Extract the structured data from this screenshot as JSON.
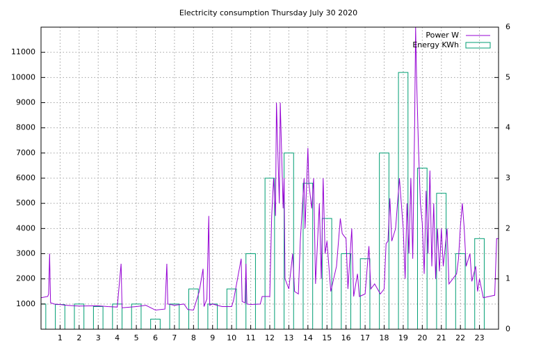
{
  "chart_data": {
    "type": "line",
    "title": "Electricity consumption Thursday July 30 2020",
    "xlim": [
      0,
      24
    ],
    "xticks": [
      1,
      2,
      3,
      4,
      5,
      6,
      7,
      8,
      9,
      10,
      11,
      12,
      13,
      14,
      15,
      16,
      17,
      18,
      19,
      20,
      21,
      22,
      23
    ],
    "ylim": [
      0,
      12000
    ],
    "yticks": [
      1000,
      2000,
      3000,
      4000,
      5000,
      6000,
      7000,
      8000,
      9000,
      10000,
      11000
    ],
    "y2lim": [
      0,
      6
    ],
    "y2ticks": [
      0,
      1,
      2,
      3,
      4,
      5,
      6
    ],
    "grid": true,
    "legend": "top right",
    "series": [
      {
        "name": "Power W",
        "color": "#9400d3",
        "type": "line",
        "x": [
          0,
          0.35,
          0.4,
          0.45,
          0.5,
          0.7,
          1.0,
          1.3,
          2,
          3,
          3.5,
          4.0,
          4.2,
          4.25,
          5,
          5.5,
          6,
          6.5,
          6.6,
          6.65,
          7,
          7.5,
          7.7,
          8,
          8.3,
          8.5,
          8.55,
          8.7,
          8.8,
          8.85,
          9,
          9.5,
          10,
          10.1,
          10.5,
          10.55,
          10.7,
          10.75,
          10.8,
          11,
          11.5,
          11.6,
          12,
          12.1,
          12.2,
          12.3,
          12.35,
          12.5,
          12.55,
          12.7,
          12.75,
          12.8,
          13,
          13.2,
          13.3,
          13.5,
          13.6,
          13.8,
          13.85,
          14,
          14.05,
          14.2,
          14.3,
          14.4,
          14.6,
          14.7,
          14.8,
          14.9,
          15,
          15.2,
          15.5,
          15.7,
          15.8,
          16,
          16.1,
          16.3,
          16.4,
          16.6,
          16.7,
          17,
          17.2,
          17.3,
          17.5,
          17.8,
          18,
          18.1,
          18.2,
          18.3,
          18.4,
          18.6,
          18.8,
          19,
          19.1,
          19.2,
          19.3,
          19.4,
          19.5,
          19.6,
          19.65,
          19.7,
          19.8,
          19.9,
          20,
          20.1,
          20.2,
          20.3,
          20.4,
          20.5,
          20.6,
          20.7,
          20.8,
          20.9,
          21,
          21.1,
          21.3,
          21.4,
          21.6,
          21.8,
          21.9,
          22,
          22.1,
          22.2,
          22.3,
          22.5,
          22.6,
          22.8,
          22.9,
          23,
          23.2,
          23.5,
          23.8,
          23.9,
          24
        ],
        "values": [
          1250,
          1300,
          1400,
          3000,
          1050,
          1000,
          980,
          950,
          920,
          930,
          900,
          880,
          2600,
          850,
          900,
          950,
          760,
          800,
          2600,
          1000,
          950,
          1000,
          780,
          760,
          1500,
          2400,
          900,
          1200,
          4500,
          950,
          1000,
          900,
          900,
          1150,
          2800,
          1100,
          1050,
          2600,
          1000,
          980,
          1000,
          1300,
          1300,
          4500,
          6000,
          4500,
          9000,
          5000,
          9000,
          4800,
          6000,
          2000,
          1600,
          3000,
          1500,
          1400,
          3500,
          6000,
          4000,
          7200,
          5800,
          4800,
          6000,
          1800,
          5000,
          2000,
          6000,
          3000,
          3500,
          1500,
          2500,
          4400,
          3800,
          3600,
          1600,
          4000,
          1300,
          2200,
          1300,
          1400,
          3300,
          1600,
          1800,
          1400,
          1600,
          3400,
          3500,
          5200,
          3500,
          4000,
          6000,
          4000,
          2000,
          5000,
          3000,
          6000,
          2800,
          8200,
          12000,
          10000,
          7200,
          5000,
          4200,
          2200,
          5500,
          3000,
          6300,
          2500,
          5000,
          2000,
          4000,
          2300,
          4000,
          2500,
          4000,
          1800,
          2000,
          2200,
          2800,
          4100,
          5000,
          4000,
          2500,
          3000,
          1900,
          2500,
          1500,
          2000,
          1250,
          1300,
          1350,
          3600,
          3600
        ]
      },
      {
        "name": "Energy KWh",
        "color": "#009e73",
        "type": "bar",
        "axis": "y2",
        "x": [
          0,
          1,
          2,
          3,
          4,
          5,
          6,
          7,
          8,
          9,
          10,
          11,
          12,
          13,
          14,
          15,
          16,
          17,
          18,
          19,
          20,
          21,
          22,
          23
        ],
        "values": [
          0.5,
          0.49,
          0.5,
          0.45,
          0.5,
          0.5,
          0.2,
          0.5,
          0.8,
          0.5,
          0.8,
          1.5,
          3.0,
          3.5,
          2.9,
          2.2,
          1.5,
          1.4,
          3.5,
          5.1,
          3.2,
          2.7,
          1.5,
          1.8
        ]
      }
    ]
  }
}
